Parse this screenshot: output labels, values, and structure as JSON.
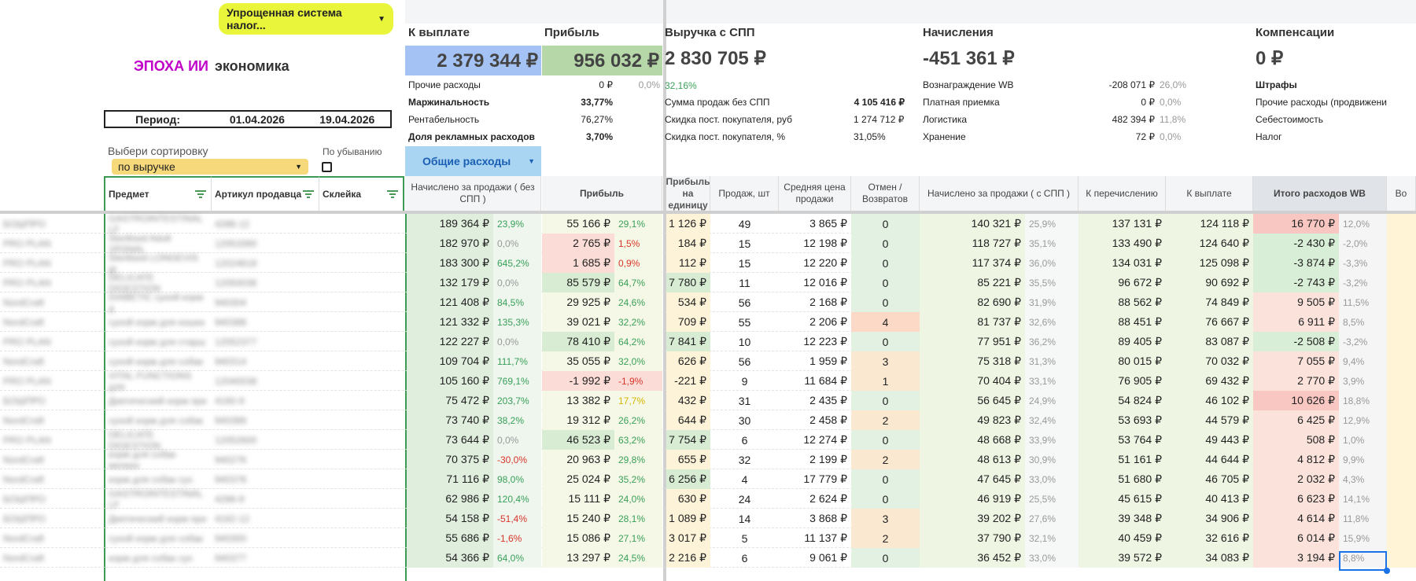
{
  "brand": {
    "part1": "ЭПОХА ИИ",
    "part2": "экономика"
  },
  "tax": {
    "label": "Упрощенная система налог...",
    "arrow": "▼"
  },
  "period": {
    "label": "Период:",
    "from": "01.04.2026",
    "to": "19.04.2026"
  },
  "sort": {
    "label": "Выбери сортировку",
    "value": "по выручке",
    "desc_label": "По убыванию"
  },
  "summary": {
    "payout": {
      "title": "К выплате",
      "value": "2 379 344 ₽"
    },
    "profit": {
      "title": "Прибыль",
      "value": "956 032 ₽"
    },
    "revenue": {
      "title": "Выручка с СПП",
      "value": "2 830 705 ₽",
      "pct": "32,16%"
    },
    "charges": {
      "title": "Начисления",
      "value": "-451 361 ₽"
    },
    "comp": {
      "title": "Компенсации",
      "value": "0 ₽"
    },
    "left_kv": [
      {
        "label": "Прочие расходы",
        "value": "0 ₽",
        "pct": "0,0%"
      },
      {
        "label": "Маржинальность",
        "value": "33,77%",
        "pct": ""
      },
      {
        "label": "Рентабельность",
        "value": "76,27%",
        "pct": ""
      },
      {
        "label": "Доля рекламных расходов",
        "value": "3,70%",
        "pct": ""
      }
    ],
    "rev_kv": [
      {
        "label": "Сумма продаж без СПП",
        "value": "4 105 416 ₽"
      },
      {
        "label": "Скидка пост. покупателя, руб",
        "value": "1 274 712 ₽"
      },
      {
        "label": "Скидка пост. покупателя, %",
        "value": "31,05%"
      }
    ],
    "charges_kv": [
      {
        "label": "Вознаграждение WB",
        "value": "-208 071 ₽",
        "pct": "26,0%"
      },
      {
        "label": "Платная приемка",
        "value": "0 ₽",
        "pct": "0,0%"
      },
      {
        "label": "Логистика",
        "value": "482 394 ₽",
        "pct": "11,8%"
      },
      {
        "label": "Хранение",
        "value": "72 ₽",
        "pct": "0,0%"
      }
    ],
    "comp_kv": [
      "Штрафы",
      "Прочие расходы (продвижени",
      "Себестоимость",
      "Налог"
    ],
    "general_btn": "Общие расходы"
  },
  "columns": {
    "subject": "Предмет",
    "article": "Артикул продавца",
    "glue": "Склейка",
    "accrued": "Начислено за продажи ( без СПП )",
    "profit": "Прибыль",
    "unit_profit": "Прибыль на единицу",
    "sales": "Продаж, шт",
    "avg_price": "Средняя цена продажи",
    "returns": "Отмен / Возвратов",
    "accrued_spp": "Начислено за продажи ( с СПП )",
    "transfer": "К перечислению",
    "payout": "К выплате",
    "wb_total": "Итого расходов WB",
    "more": "Во"
  },
  "rows": [
    {
      "s": "БОШПРО",
      "a": "GASTROINTESTINAL LF",
      "g": "4286-12",
      "acc": "189 364 ₽",
      "ap": "23,9%",
      "pr": "55 166 ₽",
      "pp": "29,1%",
      "u": "1 126 ₽",
      "q": "49",
      "avg": "3 865 ₽",
      "r": "0",
      "as": "140 321 ₽",
      "asp": "25,9%",
      "t": "137 131 ₽",
      "pay": "124 118 ₽",
      "w": "16 770 ₽",
      "wp": "12,0%"
    },
    {
      "s": "PRO PLAN",
      "a": "Sterilised Adult 1RSNAL",
      "g": "12053390",
      "acc": "182 970 ₽",
      "ap": "0,0%",
      "pr": "2 765 ₽",
      "pp": "1,5%",
      "u": "184 ₽",
      "q": "15",
      "avg": "12 198 ₽",
      "r": "0",
      "as": "118 727 ₽",
      "asp": "35,1%",
      "t": "133 490 ₽",
      "pay": "124 640 ₽",
      "w": "-2 430 ₽",
      "wp": "-2,0%"
    },
    {
      "s": "PRO PLAN",
      "a": "Sterilised LONGEVIS gr",
      "g": "12024618",
      "acc": "183 300 ₽",
      "ap": "645,2%",
      "pr": "1 685 ₽",
      "pp": "0,9%",
      "u": "112 ₽",
      "q": "15",
      "avg": "12 220 ₽",
      "r": "0",
      "as": "117 374 ₽",
      "asp": "36,0%",
      "t": "134 031 ₽",
      "pay": "125 098 ₽",
      "w": "-3 874 ₽",
      "wp": "-3,3%"
    },
    {
      "s": "PRO PLAN",
      "a": "DELICATE DIGESTION",
      "g": "12050036",
      "acc": "132 179 ₽",
      "ap": "0,0%",
      "pr": "85 579 ₽",
      "pp": "64,7%",
      "u": "7 780 ₽",
      "q": "11",
      "avg": "12 016 ₽",
      "r": "0",
      "as": "85 221 ₽",
      "asp": "35,5%",
      "t": "96 672 ₽",
      "pay": "90 692 ₽",
      "w": "-2 743 ₽",
      "wp": "-3,2%"
    },
    {
      "s": "NordCraft",
      "a": "DIABETIC сухой корм д",
      "g": "940304",
      "acc": "121 408 ₽",
      "ap": "84,5%",
      "pr": "29 925 ₽",
      "pp": "24,6%",
      "u": "534 ₽",
      "q": "56",
      "avg": "2 168 ₽",
      "r": "0",
      "as": "82 690 ₽",
      "asp": "31,9%",
      "t": "88 562 ₽",
      "pay": "74 849 ₽",
      "w": "9 505 ₽",
      "wp": "11,5%"
    },
    {
      "s": "NordCraft",
      "a": "сухой корм для кошек",
      "g": "940388",
      "acc": "121 332 ₽",
      "ap": "135,3%",
      "pr": "39 021 ₽",
      "pp": "32,2%",
      "u": "709 ₽",
      "q": "55",
      "avg": "2 206 ₽",
      "r": "4",
      "as": "81 737 ₽",
      "asp": "32,6%",
      "t": "88 451 ₽",
      "pay": "76 667 ₽",
      "w": "6 911 ₽",
      "wp": "8,5%"
    },
    {
      "s": "PRO PLAN",
      "a": "сухой корм для старш",
      "g": "12052377",
      "acc": "122 227 ₽",
      "ap": "0,0%",
      "pr": "78 410 ₽",
      "pp": "64,2%",
      "u": "7 841 ₽",
      "q": "10",
      "avg": "12 223 ₽",
      "r": "0",
      "as": "77 951 ₽",
      "asp": "36,2%",
      "t": "89 405 ₽",
      "pay": "83 087 ₽",
      "w": "-2 508 ₽",
      "wp": "-3,2%"
    },
    {
      "s": "NordCraft",
      "a": "сухой корм для собак",
      "g": "940314",
      "acc": "109 704 ₽",
      "ap": "111,7%",
      "pr": "35 055 ₽",
      "pp": "32,0%",
      "u": "626 ₽",
      "q": "56",
      "avg": "1 959 ₽",
      "r": "3",
      "as": "75 318 ₽",
      "asp": "31,3%",
      "t": "80 015 ₽",
      "pay": "70 032 ₽",
      "w": "7 055 ₽",
      "wp": "9,4%"
    },
    {
      "s": "PRO PLAN",
      "a": "VITAL FUNCTIONS для",
      "g": "12040038",
      "acc": "105 160 ₽",
      "ap": "769,1%",
      "pr": "-1 992 ₽",
      "pp": "-1,9%",
      "u": "-221 ₽",
      "q": "9",
      "avg": "11 684 ₽",
      "r": "1",
      "as": "70 404 ₽",
      "asp": "33,1%",
      "t": "76 905 ₽",
      "pay": "69 432 ₽",
      "w": "2 770 ₽",
      "wp": "3,9%"
    },
    {
      "s": "БОШПРО",
      "a": "Диетический корм при",
      "g": "4160-9",
      "acc": "75 472 ₽",
      "ap": "203,7%",
      "pr": "13 382 ₽",
      "pp": "17,7%",
      "u": "432 ₽",
      "q": "31",
      "avg": "2 435 ₽",
      "r": "0",
      "as": "56 645 ₽",
      "asp": "24,9%",
      "t": "54 824 ₽",
      "pay": "46 102 ₽",
      "w": "10 626 ₽",
      "wp": "18,8%"
    },
    {
      "s": "NordCraft",
      "a": "сухой корм для собак",
      "g": "940389",
      "acc": "73 740 ₽",
      "ap": "38,2%",
      "pr": "19 312 ₽",
      "pp": "26,2%",
      "u": "644 ₽",
      "q": "30",
      "avg": "2 458 ₽",
      "r": "2",
      "as": "49 823 ₽",
      "asp": "32,4%",
      "t": "53 693 ₽",
      "pay": "44 579 ₽",
      "w": "6 425 ₽",
      "wp": "12,9%"
    },
    {
      "s": "PRO PLAN",
      "a": "DELICATE DIGESTION",
      "g": "12052600",
      "acc": "73 644 ₽",
      "ap": "0,0%",
      "pr": "46 523 ₽",
      "pp": "63,2%",
      "u": "7 754 ₽",
      "q": "6",
      "avg": "12 274 ₽",
      "r": "0",
      "as": "48 668 ₽",
      "asp": "33,9%",
      "t": "53 764 ₽",
      "pay": "49 443 ₽",
      "w": "508 ₽",
      "wp": "1,0%"
    },
    {
      "s": "NordCraft",
      "a": "корм для собак мелких",
      "g": "940276",
      "acc": "70 375 ₽",
      "ap": "-30,0%",
      "pr": "20 963 ₽",
      "pp": "29,8%",
      "u": "655 ₽",
      "q": "32",
      "avg": "2 199 ₽",
      "r": "2",
      "as": "48 613 ₽",
      "asp": "30,9%",
      "t": "51 161 ₽",
      "pay": "44 644 ₽",
      "w": "4 812 ₽",
      "wp": "9,9%"
    },
    {
      "s": "NordCraft",
      "a": "корм для собак сух",
      "g": "940378",
      "acc": "71 116 ₽",
      "ap": "98,0%",
      "pr": "25 024 ₽",
      "pp": "35,2%",
      "u": "6 256 ₽",
      "q": "4",
      "avg": "17 779 ₽",
      "r": "0",
      "as": "47 645 ₽",
      "asp": "33,0%",
      "t": "51 680 ₽",
      "pay": "46 705 ₽",
      "w": "2 032 ₽",
      "wp": "4,3%"
    },
    {
      "s": "БОШПРО",
      "a": "GASTROINTESTINAL LF",
      "g": "4286-9",
      "acc": "62 986 ₽",
      "ap": "120,4%",
      "pr": "15 111 ₽",
      "pp": "24,0%",
      "u": "630 ₽",
      "q": "24",
      "avg": "2 624 ₽",
      "r": "0",
      "as": "46 919 ₽",
      "asp": "25,5%",
      "t": "45 615 ₽",
      "pay": "40 413 ₽",
      "w": "6 623 ₽",
      "wp": "14,1%"
    },
    {
      "s": "БОШПРО",
      "a": "Диетический корм при",
      "g": "4162-12",
      "acc": "54 158 ₽",
      "ap": "-51,4%",
      "pr": "15 240 ₽",
      "pp": "28,1%",
      "u": "1 089 ₽",
      "q": "14",
      "avg": "3 868 ₽",
      "r": "3",
      "as": "39 202 ₽",
      "asp": "27,6%",
      "t": "39 348 ₽",
      "pay": "34 906 ₽",
      "w": "4 614 ₽",
      "wp": "11,8%"
    },
    {
      "s": "NordCraft",
      "a": "сухой корм для собак",
      "g": "940300",
      "acc": "55 686 ₽",
      "ap": "-1,6%",
      "pr": "15 086 ₽",
      "pp": "27,1%",
      "u": "3 017 ₽",
      "q": "5",
      "avg": "11 137 ₽",
      "r": "2",
      "as": "37 790 ₽",
      "asp": "32,1%",
      "t": "40 459 ₽",
      "pay": "32 616 ₽",
      "w": "6 014 ₽",
      "wp": "15,9%"
    },
    {
      "s": "NordCraft",
      "a": "корм для собак сух",
      "g": "940377",
      "acc": "54 366 ₽",
      "ap": "64,0%",
      "pr": "13 297 ₽",
      "pp": "24,5%",
      "u": "2 216 ₽",
      "q": "6",
      "avg": "9 061 ₽",
      "r": "0",
      "as": "36 452 ₽",
      "asp": "33,0%",
      "t": "39 572 ₽",
      "pay": "34 083 ₽",
      "w": "3 194 ₽",
      "wp": "8,8%"
    }
  ]
}
